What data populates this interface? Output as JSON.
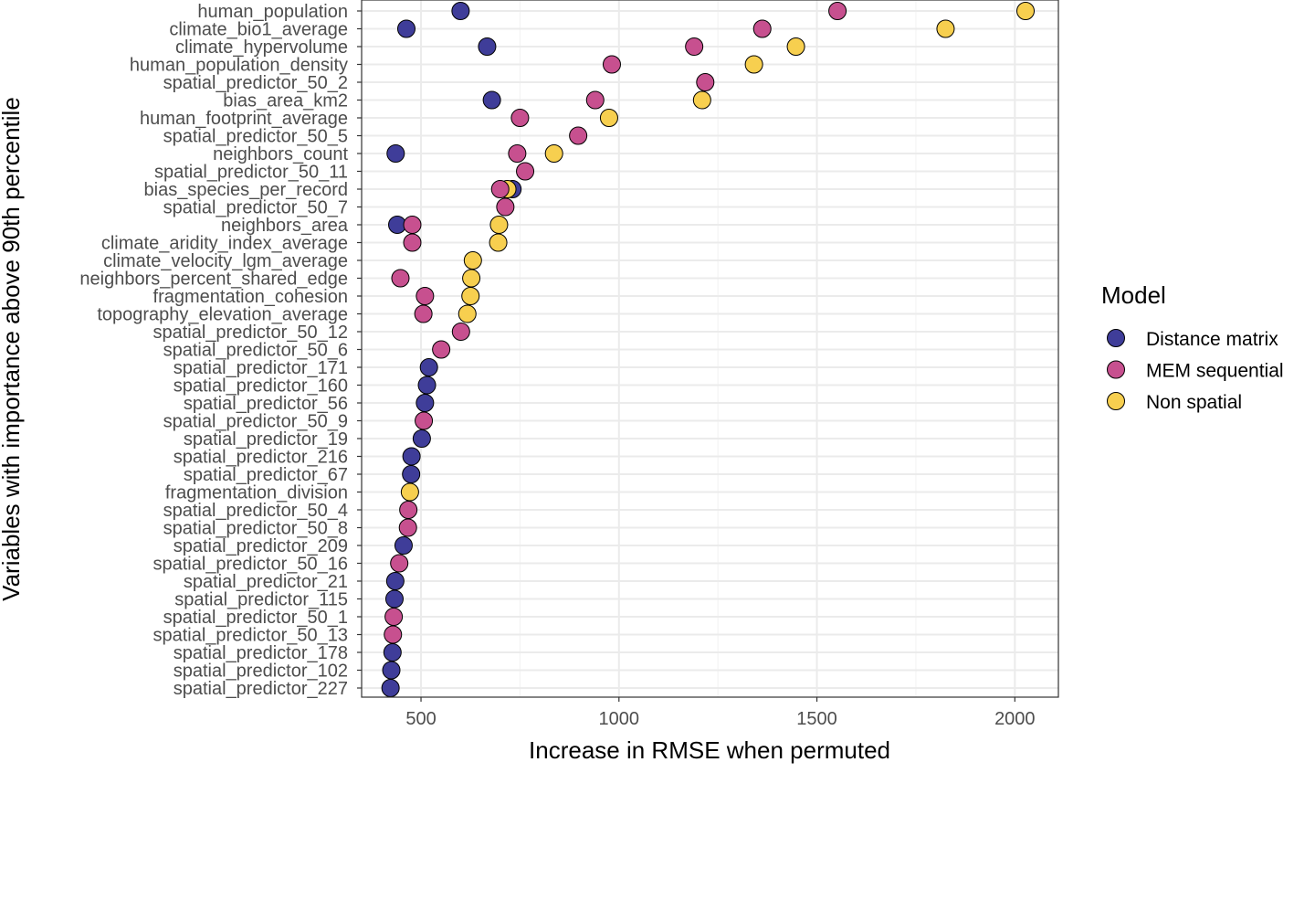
{
  "chart_data": {
    "type": "scatter",
    "xlabel": "Increase in RMSE when permuted",
    "ylabel": "Variables with importance above 90th percentile",
    "xlim": [
      350,
      2110
    ],
    "x_ticks": [
      500,
      1000,
      1500,
      2000
    ],
    "grid": true,
    "legend": {
      "title": "Model",
      "placement": "right",
      "entries": [
        {
          "name": "Distance matrix",
          "color": "#3f3d99"
        },
        {
          "name": "MEM sequential",
          "color": "#c7508f"
        },
        {
          "name": "Non spatial",
          "color": "#f7cf4f"
        }
      ]
    },
    "categories": [
      "human_population",
      "climate_bio1_average",
      "climate_hypervolume",
      "human_population_density",
      "spatial_predictor_50_2",
      "bias_area_km2",
      "human_footprint_average",
      "spatial_predictor_50_5",
      "neighbors_count",
      "spatial_predictor_50_11",
      "bias_species_per_record",
      "spatial_predictor_50_7",
      "neighbors_area",
      "climate_aridity_index_average",
      "climate_velocity_lgm_average",
      "neighbors_percent_shared_edge",
      "fragmentation_cohesion",
      "topography_elevation_average",
      "spatial_predictor_50_12",
      "spatial_predictor_50_6",
      "spatial_predictor_171",
      "spatial_predictor_160",
      "spatial_predictor_56",
      "spatial_predictor_50_9",
      "spatial_predictor_19",
      "spatial_predictor_216",
      "spatial_predictor_67",
      "fragmentation_division",
      "spatial_predictor_50_4",
      "spatial_predictor_50_8",
      "spatial_predictor_209",
      "spatial_predictor_50_16",
      "spatial_predictor_21",
      "spatial_predictor_115",
      "spatial_predictor_50_1",
      "spatial_predictor_50_13",
      "spatial_predictor_178",
      "spatial_predictor_102",
      "spatial_predictor_227"
    ],
    "points": [
      {
        "category": "human_population",
        "series": "Distance matrix",
        "x": 600
      },
      {
        "category": "human_population",
        "series": "MEM sequential",
        "x": 1552
      },
      {
        "category": "human_population",
        "series": "Non spatial",
        "x": 2027
      },
      {
        "category": "climate_bio1_average",
        "series": "Distance matrix",
        "x": 463
      },
      {
        "category": "climate_bio1_average",
        "series": "MEM sequential",
        "x": 1362
      },
      {
        "category": "climate_bio1_average",
        "series": "Non spatial",
        "x": 1825
      },
      {
        "category": "climate_hypervolume",
        "series": "Distance matrix",
        "x": 667
      },
      {
        "category": "climate_hypervolume",
        "series": "MEM sequential",
        "x": 1190
      },
      {
        "category": "climate_hypervolume",
        "series": "Non spatial",
        "x": 1447
      },
      {
        "category": "human_population_density",
        "series": "MEM sequential",
        "x": 982
      },
      {
        "category": "human_population_density",
        "series": "Non spatial",
        "x": 1341
      },
      {
        "category": "spatial_predictor_50_2",
        "series": "MEM sequential",
        "x": 1218
      },
      {
        "category": "bias_area_km2",
        "series": "Distance matrix",
        "x": 679
      },
      {
        "category": "bias_area_km2",
        "series": "MEM sequential",
        "x": 940
      },
      {
        "category": "bias_area_km2",
        "series": "Non spatial",
        "x": 1210
      },
      {
        "category": "human_footprint_average",
        "series": "MEM sequential",
        "x": 750
      },
      {
        "category": "human_footprint_average",
        "series": "Non spatial",
        "x": 975
      },
      {
        "category": "spatial_predictor_50_5",
        "series": "MEM sequential",
        "x": 897
      },
      {
        "category": "neighbors_count",
        "series": "Distance matrix",
        "x": 436
      },
      {
        "category": "neighbors_count",
        "series": "MEM sequential",
        "x": 743
      },
      {
        "category": "neighbors_count",
        "series": "Non spatial",
        "x": 836
      },
      {
        "category": "spatial_predictor_50_11",
        "series": "MEM sequential",
        "x": 763
      },
      {
        "category": "bias_species_per_record",
        "series": "Distance matrix",
        "x": 731
      },
      {
        "category": "bias_species_per_record",
        "series": "Non spatial",
        "x": 718
      },
      {
        "category": "bias_species_per_record",
        "series": "MEM sequential",
        "x": 700
      },
      {
        "category": "spatial_predictor_50_7",
        "series": "MEM sequential",
        "x": 713
      },
      {
        "category": "neighbors_area",
        "series": "Distance matrix",
        "x": 440
      },
      {
        "category": "neighbors_area",
        "series": "MEM sequential",
        "x": 478
      },
      {
        "category": "neighbors_area",
        "series": "Non spatial",
        "x": 697
      },
      {
        "category": "climate_aridity_index_average",
        "series": "MEM sequential",
        "x": 478
      },
      {
        "category": "climate_aridity_index_average",
        "series": "Non spatial",
        "x": 695
      },
      {
        "category": "climate_velocity_lgm_average",
        "series": "Non spatial",
        "x": 631
      },
      {
        "category": "neighbors_percent_shared_edge",
        "series": "MEM sequential",
        "x": 448
      },
      {
        "category": "neighbors_percent_shared_edge",
        "series": "Non spatial",
        "x": 627
      },
      {
        "category": "fragmentation_cohesion",
        "series": "MEM sequential",
        "x": 510
      },
      {
        "category": "fragmentation_cohesion",
        "series": "Non spatial",
        "x": 625
      },
      {
        "category": "topography_elevation_average",
        "series": "MEM sequential",
        "x": 506
      },
      {
        "category": "topography_elevation_average",
        "series": "Non spatial",
        "x": 617
      },
      {
        "category": "spatial_predictor_50_12",
        "series": "MEM sequential",
        "x": 601
      },
      {
        "category": "spatial_predictor_50_6",
        "series": "MEM sequential",
        "x": 551
      },
      {
        "category": "spatial_predictor_171",
        "series": "Distance matrix",
        "x": 520
      },
      {
        "category": "spatial_predictor_160",
        "series": "Distance matrix",
        "x": 515
      },
      {
        "category": "spatial_predictor_56",
        "series": "Distance matrix",
        "x": 510
      },
      {
        "category": "spatial_predictor_50_9",
        "series": "MEM sequential",
        "x": 507
      },
      {
        "category": "spatial_predictor_19",
        "series": "Distance matrix",
        "x": 502
      },
      {
        "category": "spatial_predictor_216",
        "series": "Distance matrix",
        "x": 476
      },
      {
        "category": "spatial_predictor_67",
        "series": "Distance matrix",
        "x": 475
      },
      {
        "category": "fragmentation_division",
        "series": "Non spatial",
        "x": 472
      },
      {
        "category": "spatial_predictor_50_4",
        "series": "MEM sequential",
        "x": 468
      },
      {
        "category": "spatial_predictor_50_8",
        "series": "MEM sequential",
        "x": 467
      },
      {
        "category": "spatial_predictor_209",
        "series": "Distance matrix",
        "x": 456
      },
      {
        "category": "spatial_predictor_50_16",
        "series": "MEM sequential",
        "x": 445
      },
      {
        "category": "spatial_predictor_21",
        "series": "Distance matrix",
        "x": 435
      },
      {
        "category": "spatial_predictor_115",
        "series": "Distance matrix",
        "x": 433
      },
      {
        "category": "spatial_predictor_50_1",
        "series": "MEM sequential",
        "x": 431
      },
      {
        "category": "spatial_predictor_50_13",
        "series": "MEM sequential",
        "x": 429
      },
      {
        "category": "spatial_predictor_178",
        "series": "Distance matrix",
        "x": 428
      },
      {
        "category": "spatial_predictor_102",
        "series": "Distance matrix",
        "x": 425
      },
      {
        "category": "spatial_predictor_227",
        "series": "Distance matrix",
        "x": 423
      }
    ]
  }
}
